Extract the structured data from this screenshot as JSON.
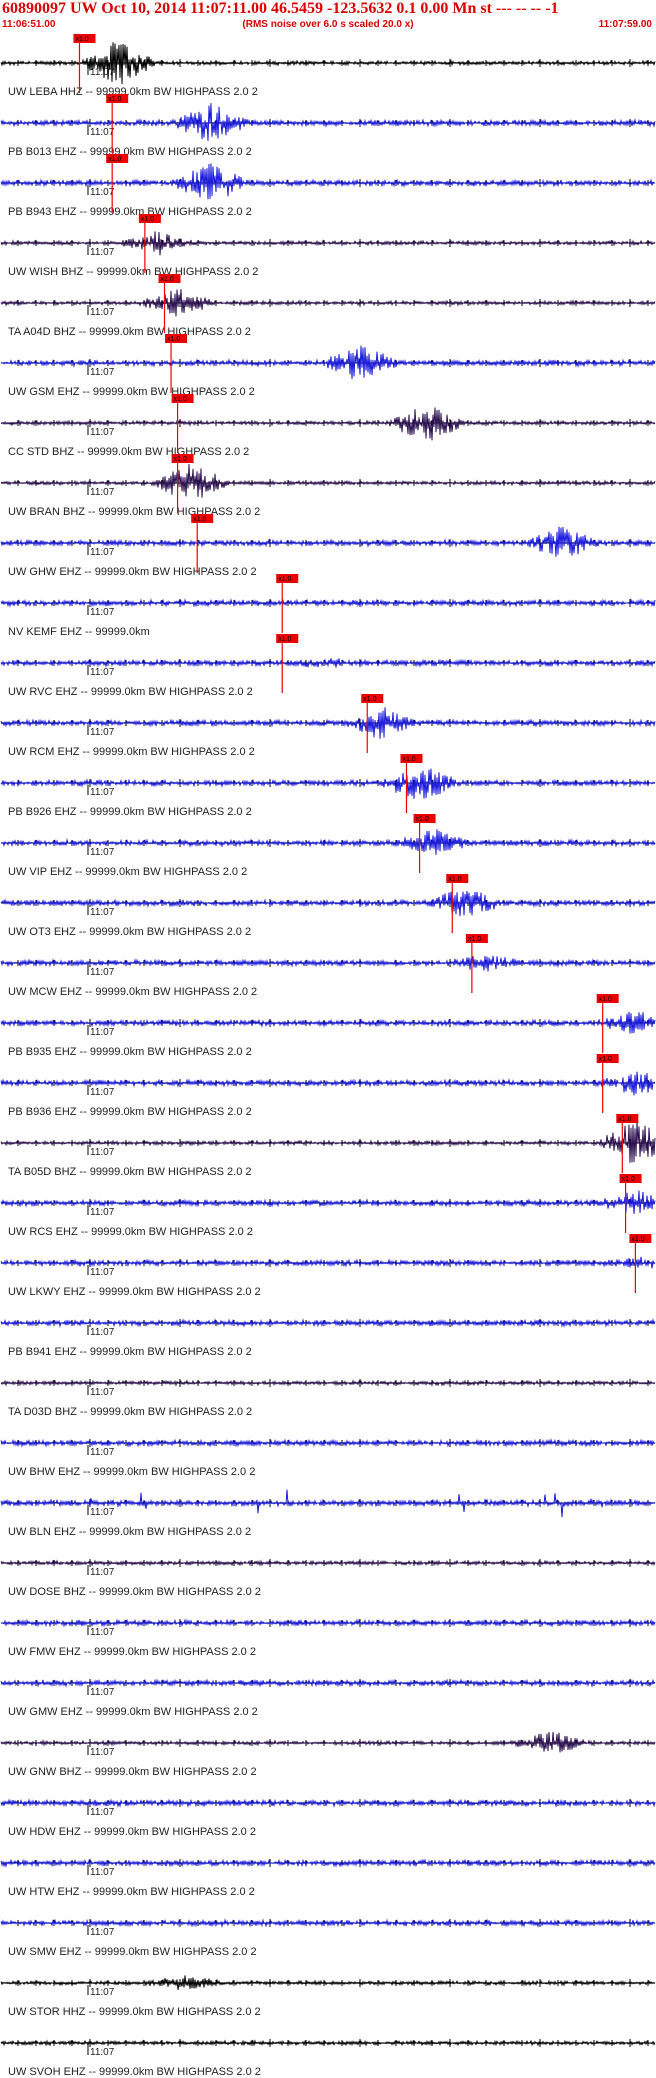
{
  "header": {
    "title": "60890097 UW Oct 10, 2014 11:07:11.00   46.5459 -123.5632  0.1 0.00 Mn st --- -- --  -1",
    "start_time": "11:06:51.00",
    "subtitle": "(RMS noise over 6.0 s scaled 20.0 x)",
    "end_time": "11:07:59.00"
  },
  "colors": {
    "blue": "#1a1adc",
    "dark": "#2c1050",
    "black": "#000000",
    "pick": "#ee0000"
  },
  "minute_label": "11:07",
  "pick_label": "x1.0",
  "traces": [
    {
      "label": "UW LEBA HHZ -- 99999.0km BW  HIGHPASS  2.0  2",
      "color": "black",
      "pick": 0.12,
      "burst_at": 0.18,
      "burst_amp": 1.0
    },
    {
      "label": "PB B013 EHZ -- 99999.0km BW  HIGHPASS  2.0  2",
      "color": "blue",
      "pick": 0.17,
      "burst_at": 0.32,
      "burst_amp": 0.85
    },
    {
      "label": "PB B943 EHZ -- 99999.0km BW  HIGHPASS  2.0  2",
      "color": "blue",
      "pick": 0.17,
      "burst_at": 0.32,
      "burst_amp": 0.85
    },
    {
      "label": "UW WISH BHZ -- 99999.0km BW  HIGHPASS  2.0  2",
      "color": "dark",
      "pick": 0.22,
      "burst_at": 0.24,
      "burst_amp": 0.5
    },
    {
      "label": "TA A04D BHZ -- 99999.0km BW  HIGHPASS  2.0  2",
      "color": "dark",
      "pick": 0.25,
      "burst_at": 0.27,
      "burst_amp": 0.6
    },
    {
      "label": "UW GSM EHZ -- 99999.0km BW  HIGHPASS  2.0  2",
      "color": "blue",
      "pick": 0.26,
      "burst_at": 0.55,
      "burst_amp": 0.8
    },
    {
      "label": "CC STD BHZ -- 99999.0km BW  HIGHPASS  2.0  2",
      "color": "dark",
      "pick": 0.27,
      "burst_at": 0.65,
      "burst_amp": 0.9
    },
    {
      "label": "UW BRAN BHZ -- 99999.0km BW  HIGHPASS  2.0  2",
      "color": "dark",
      "pick": 0.27,
      "burst_at": 0.29,
      "burst_amp": 0.95
    },
    {
      "label": "UW GHW EHZ -- 99999.0km BW  HIGHPASS  2.0  2",
      "color": "blue",
      "pick": 0.3,
      "burst_at": 0.86,
      "burst_amp": 0.7
    },
    {
      "label": "NV KEMF EHZ -- 99999.0km",
      "color": "blue",
      "pick": 0.43,
      "burst_at": 0.5,
      "burst_amp": 0.0
    },
    {
      "label": "UW RVC EHZ -- 99999.0km BW  HIGHPASS  2.0  2",
      "color": "blue",
      "pick": 0.43,
      "burst_at": 0.5,
      "burst_amp": 0.1
    },
    {
      "label": "UW RCM EHZ -- 99999.0km BW  HIGHPASS  2.0  2",
      "color": "blue",
      "pick": 0.56,
      "burst_at": 0.58,
      "burst_amp": 0.65
    },
    {
      "label": "PB B926 EHZ -- 99999.0km BW  HIGHPASS  2.0  2",
      "color": "blue",
      "pick": 0.62,
      "burst_at": 0.64,
      "burst_amp": 0.8
    },
    {
      "label": "UW VIP EHZ -- 99999.0km BW  HIGHPASS  2.0  2",
      "color": "blue",
      "pick": 0.64,
      "burst_at": 0.66,
      "burst_amp": 0.55
    },
    {
      "label": "UW OT3 EHZ -- 99999.0km BW  HIGHPASS  2.0  2",
      "color": "blue",
      "pick": 0.69,
      "burst_at": 0.71,
      "burst_amp": 0.6
    },
    {
      "label": "UW MCW EHZ -- 99999.0km BW  HIGHPASS  2.0  2",
      "color": "blue",
      "pick": 0.72,
      "burst_at": 0.74,
      "burst_amp": 0.3
    },
    {
      "label": "PB B935 EHZ -- 99999.0km BW  HIGHPASS  2.0  2",
      "color": "blue",
      "pick": 0.92,
      "burst_at": 0.97,
      "burst_amp": 0.45
    },
    {
      "label": "PB B936 EHZ -- 99999.0km BW  HIGHPASS  2.0  2",
      "color": "blue",
      "pick": 0.92,
      "burst_at": 0.97,
      "burst_amp": 0.45
    },
    {
      "label": "TA B05D BHZ -- 99999.0km BW  HIGHPASS  2.0  2",
      "color": "dark",
      "pick": 0.95,
      "burst_at": 0.97,
      "burst_amp": 1.0
    },
    {
      "label": "UW RCS EHZ -- 99999.0km BW  HIGHPASS  2.0  2",
      "color": "blue",
      "pick": 0.955,
      "burst_at": 0.97,
      "burst_amp": 0.5
    },
    {
      "label": "UW LKWY EHZ -- 99999.0km BW  HIGHPASS  2.0  2",
      "color": "blue",
      "pick": 0.97,
      "burst_at": 0.98,
      "burst_amp": 0.2
    },
    {
      "label": "PB B941 EHZ -- 99999.0km BW  HIGHPASS  2.0  2",
      "color": "blue",
      "pick": null,
      "burst_at": 0.5,
      "burst_amp": 0.0
    },
    {
      "label": "TA D03D BHZ -- 99999.0km BW  HIGHPASS  2.0  2",
      "color": "dark",
      "pick": null,
      "burst_at": 0.5,
      "burst_amp": 0.0
    },
    {
      "label": "UW BHW EHZ -- 99999.0km BW  HIGHPASS  2.0  2",
      "color": "blue",
      "pick": null,
      "burst_at": 0.5,
      "burst_amp": 0.0
    },
    {
      "label": "UW BLN EHZ -- 99999.0km BW  HIGHPASS  2.0  2",
      "color": "blue",
      "pick": null,
      "burst_at": 0.5,
      "burst_amp": 0.0,
      "spikes": true
    },
    {
      "label": "UW DOSE BHZ -- 99999.0km BW  HIGHPASS  2.0  2",
      "color": "dark",
      "pick": null,
      "burst_at": 0.5,
      "burst_amp": 0.0
    },
    {
      "label": "UW FMW EHZ -- 99999.0km BW  HIGHPASS  2.0  2",
      "color": "blue",
      "pick": null,
      "burst_at": 0.5,
      "burst_amp": 0.0
    },
    {
      "label": "UW GMW EHZ -- 99999.0km BW  HIGHPASS  2.0  2",
      "color": "blue",
      "pick": null,
      "burst_at": 0.5,
      "burst_amp": 0.0
    },
    {
      "label": "UW GNW BHZ -- 99999.0km BW  HIGHPASS  2.0  2",
      "color": "dark",
      "pick": null,
      "burst_at": 0.84,
      "burst_amp": 0.5
    },
    {
      "label": "UW HDW EHZ -- 99999.0km BW  HIGHPASS  2.0  2",
      "color": "blue",
      "pick": null,
      "burst_at": 0.5,
      "burst_amp": 0.0
    },
    {
      "label": "UW HTW EHZ -- 99999.0km BW  HIGHPASS  2.0  2",
      "color": "blue",
      "pick": null,
      "burst_at": 0.5,
      "burst_amp": 0.0
    },
    {
      "label": "UW SMW EHZ -- 99999.0km BW  HIGHPASS  2.0  2",
      "color": "blue",
      "pick": null,
      "burst_at": 0.5,
      "burst_amp": 0.0
    },
    {
      "label": "UW STOR HHZ -- 99999.0km BW  HIGHPASS  2.0  2",
      "color": "black",
      "pick": null,
      "burst_at": 0.28,
      "burst_amp": 0.3
    },
    {
      "label": "UW SVOH EHZ -- 99999.0km BW  HIGHPASS  2.0  2",
      "color": "black",
      "pick": null,
      "burst_at": 0.5,
      "burst_amp": 0.0
    }
  ]
}
